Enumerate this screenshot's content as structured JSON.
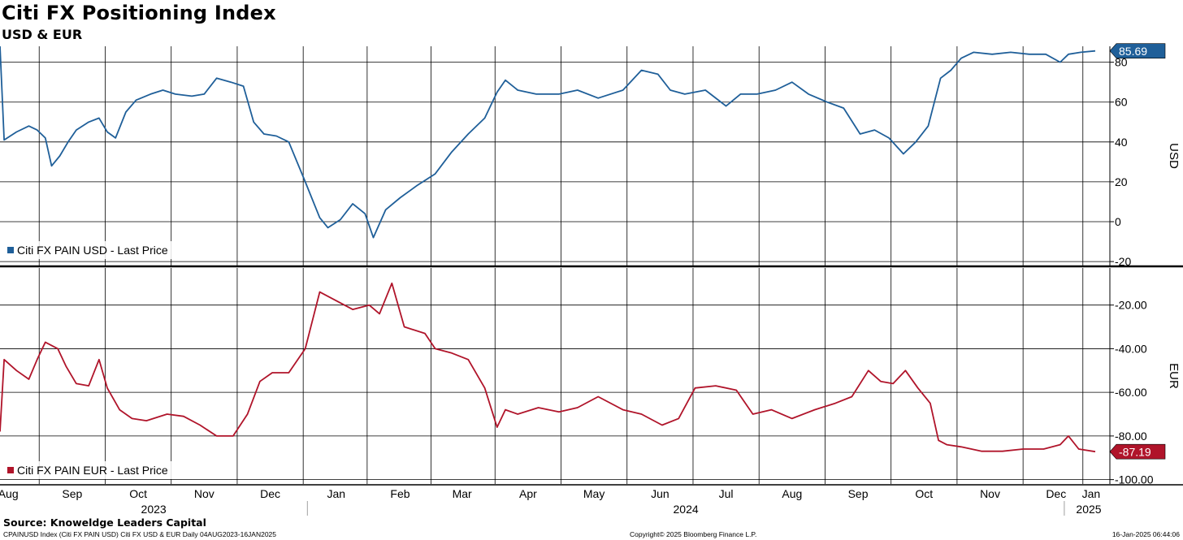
{
  "header": {
    "title": "Citi FX Positioning Index",
    "subtitle": "USD & EUR"
  },
  "footer": {
    "source": "Source: Knoweldge Leaders Capital",
    "index_info": "CPAINUSD Index (Citi FX PAIN USD) Citi FX USD & EUR  Daily 04AUG2023-16JAN2025",
    "copyright": "Copyright© 2025 Bloomberg Finance L.P.",
    "timestamp": "16-Jan-2025 06:44:06"
  },
  "colors": {
    "usd": "#1f5f99",
    "eur": "#b0142a",
    "grid": "#000000"
  },
  "chart_data": [
    {
      "type": "line",
      "ylabel": "USD",
      "ylim": [
        -22,
        88
      ],
      "yticks": [
        "-20",
        "0",
        "20",
        "40",
        "60",
        "80"
      ],
      "grid": true,
      "legend": "bottom-left",
      "last_value_label": "85.69",
      "series": [
        {
          "name": "Citi FX PAIN USD - Last Price",
          "x": [
            "2023-08-04",
            "2023-08-06",
            "2023-08-12",
            "2023-08-18",
            "2023-08-22",
            "2023-08-26",
            "2023-08-29",
            "2023-09-02",
            "2023-09-06",
            "2023-09-10",
            "2023-09-16",
            "2023-09-21",
            "2023-09-25",
            "2023-09-29",
            "2023-10-04",
            "2023-10-09",
            "2023-10-16",
            "2023-10-22",
            "2023-10-28",
            "2023-11-05",
            "2023-11-11",
            "2023-11-17",
            "2023-11-24",
            "2023-11-30",
            "2023-12-05",
            "2023-12-10",
            "2023-12-16",
            "2023-12-22",
            "2023-12-30",
            "2024-01-06",
            "2024-01-10",
            "2024-01-16",
            "2024-01-22",
            "2024-01-28",
            "2024-02-01",
            "2024-02-07",
            "2024-02-14",
            "2024-02-22",
            "2024-03-02",
            "2024-03-10",
            "2024-03-18",
            "2024-03-26",
            "2024-04-01",
            "2024-04-05",
            "2024-04-11",
            "2024-04-20",
            "2024-05-01",
            "2024-05-10",
            "2024-05-20",
            "2024-06-01",
            "2024-06-10",
            "2024-06-18",
            "2024-06-24",
            "2024-07-01",
            "2024-07-11",
            "2024-07-21",
            "2024-07-28",
            "2024-08-05",
            "2024-08-14",
            "2024-08-22",
            "2024-08-30",
            "2024-09-08",
            "2024-09-16",
            "2024-09-24",
            "2024-10-01",
            "2024-10-08",
            "2024-10-15",
            "2024-10-21",
            "2024-10-27",
            "2024-11-02",
            "2024-11-07",
            "2024-11-12",
            "2024-11-18",
            "2024-11-27",
            "2024-12-06",
            "2024-12-15",
            "2024-12-23",
            "2024-12-30",
            "2025-01-03",
            "2025-01-09",
            "2025-01-16"
          ],
          "values": [
            88,
            41,
            45,
            48,
            46,
            42,
            28,
            33,
            40,
            46,
            50,
            52,
            45,
            42,
            55,
            61,
            64,
            66,
            64,
            63,
            64,
            72,
            70,
            68,
            50,
            44,
            43,
            40,
            20,
            2,
            -3,
            1,
            9,
            4,
            -8,
            6,
            12,
            18,
            24,
            35,
            44,
            52,
            65,
            71,
            66,
            64,
            64,
            66,
            62,
            66,
            76,
            74,
            66,
            64,
            66,
            58,
            64,
            64,
            66,
            70,
            64,
            60,
            57,
            44,
            46,
            42,
            34,
            40,
            48,
            72,
            76,
            82,
            85,
            84,
            85,
            84,
            84,
            80,
            84,
            85,
            85.69
          ]
        }
      ]
    },
    {
      "type": "line",
      "ylabel": "EUR",
      "ylim": [
        -102,
        -3
      ],
      "yticks": [
        "-20.00",
        "-40.00",
        "-60.00",
        "-80.00",
        "-100.00"
      ],
      "grid": true,
      "legend": "bottom-left",
      "last_value_label": "-87.19",
      "series": [
        {
          "name": "Citi FX PAIN EUR - Last Price",
          "x": [
            "2023-08-04",
            "2023-08-06",
            "2023-08-12",
            "2023-08-18",
            "2023-08-22",
            "2023-08-26",
            "2023-09-01",
            "2023-09-05",
            "2023-09-10",
            "2023-09-16",
            "2023-09-21",
            "2023-09-25",
            "2023-10-01",
            "2023-10-07",
            "2023-10-14",
            "2023-10-24",
            "2023-11-01",
            "2023-11-09",
            "2023-11-17",
            "2023-11-25",
            "2023-12-02",
            "2023-12-08",
            "2023-12-14",
            "2023-12-22",
            "2023-12-30",
            "2024-01-06",
            "2024-01-14",
            "2024-01-22",
            "2024-01-30",
            "2024-02-04",
            "2024-02-10",
            "2024-02-16",
            "2024-02-26",
            "2024-03-02",
            "2024-03-10",
            "2024-03-18",
            "2024-03-26",
            "2024-04-01",
            "2024-04-05",
            "2024-04-11",
            "2024-04-21",
            "2024-05-01",
            "2024-05-10",
            "2024-05-20",
            "2024-06-01",
            "2024-06-10",
            "2024-06-20",
            "2024-06-28",
            "2024-07-06",
            "2024-07-16",
            "2024-07-26",
            "2024-08-03",
            "2024-08-12",
            "2024-08-22",
            "2024-09-02",
            "2024-09-12",
            "2024-09-20",
            "2024-09-28",
            "2024-10-04",
            "2024-10-10",
            "2024-10-16",
            "2024-10-22",
            "2024-10-28",
            "2024-11-01",
            "2024-11-05",
            "2024-11-12",
            "2024-11-22",
            "2024-12-02",
            "2024-12-12",
            "2024-12-22",
            "2024-12-30",
            "2025-01-03",
            "2025-01-08",
            "2025-01-16"
          ],
          "values": [
            -78,
            -45,
            -50,
            -54,
            -45,
            -37,
            -40,
            -48,
            -56,
            -57,
            -45,
            -58,
            -68,
            -72,
            -73,
            -70,
            -71,
            -75,
            -80,
            -80,
            -70,
            -55,
            -51,
            -51,
            -40,
            -14,
            -18,
            -22,
            -20,
            -24,
            -10,
            -30,
            -33,
            -40,
            -42,
            -45,
            -58,
            -76,
            -68,
            -70,
            -67,
            -69,
            -67,
            -62,
            -68,
            -70,
            -75,
            -72,
            -58,
            -57,
            -59,
            -70,
            -68,
            -72,
            -68,
            -65,
            -62,
            -50,
            -55,
            -56,
            -50,
            -58,
            -65,
            -82,
            -84,
            -85,
            -87,
            -87,
            -86,
            -86,
            -84,
            -80,
            -86,
            -87.19
          ]
        }
      ]
    }
  ],
  "x_axis": {
    "months": [
      "Aug",
      "Sep",
      "Oct",
      "Nov",
      "Dec",
      "Jan",
      "Feb",
      "Mar",
      "Apr",
      "May",
      "Jun",
      "Jul",
      "Aug",
      "Sep",
      "Oct",
      "Nov",
      "Dec",
      "Jan"
    ],
    "years": [
      "2023",
      "2024",
      "2025"
    ]
  }
}
